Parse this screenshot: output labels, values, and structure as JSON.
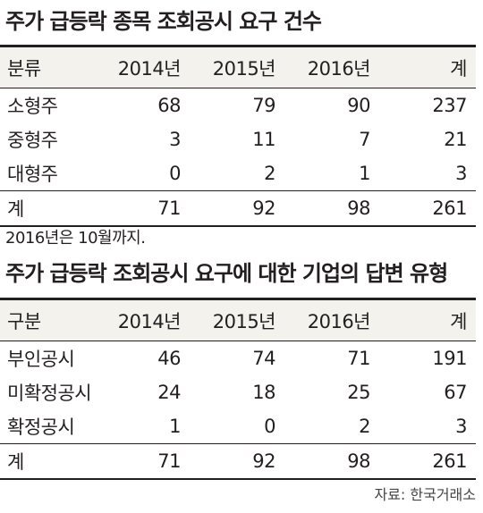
{
  "table1": {
    "title": "주가 급등락 종목 조회공시 요구 건수",
    "columns": [
      "분류",
      "2014년",
      "2015년",
      "2016년",
      "계"
    ],
    "rows": [
      [
        "소형주",
        "68",
        "79",
        "90",
        "237"
      ],
      [
        "중형주",
        "3",
        "11",
        "7",
        "21"
      ],
      [
        "대형주",
        "0",
        "2",
        "1",
        "3"
      ]
    ],
    "total": [
      "계",
      "71",
      "92",
      "98",
      "261"
    ],
    "note": "2016년은 10월까지."
  },
  "table2": {
    "title": "주가 급등락 조회공시 요구에 대한 기업의 답변 유형",
    "columns": [
      "구분",
      "2014년",
      "2015년",
      "2016년",
      "계"
    ],
    "rows": [
      [
        "부인공시",
        "46",
        "74",
        "71",
        "191"
      ],
      [
        "미확정공시",
        "24",
        "18",
        "25",
        "67"
      ],
      [
        "확정공시",
        "1",
        "0",
        "2",
        "3"
      ]
    ],
    "total": [
      "계",
      "71",
      "92",
      "98",
      "261"
    ]
  },
  "source": "자료: 한국거래소",
  "colors": {
    "text": "#231f20",
    "header_bg": "#f3f2ed",
    "rule": "#231f20"
  }
}
